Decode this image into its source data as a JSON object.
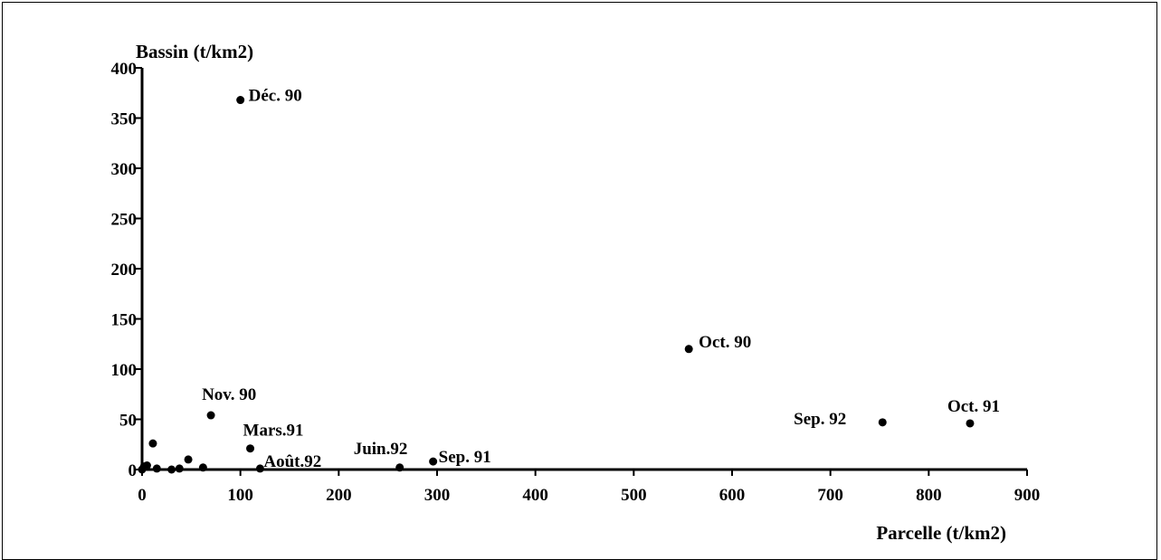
{
  "chart_data": {
    "type": "scatter",
    "ylabel": "Bassin (t/km2)",
    "xlabel": "Parcelle (t/km2)",
    "xlim": [
      0,
      900
    ],
    "ylim": [
      0,
      400
    ],
    "xticks": [
      0,
      100,
      200,
      300,
      400,
      500,
      600,
      700,
      800,
      900
    ],
    "yticks": [
      0,
      50,
      100,
      150,
      200,
      250,
      300,
      350,
      400
    ],
    "grid": false,
    "marker_color": "#000000",
    "points": [
      {
        "x": 100,
        "y": 368,
        "label": "Déc. 90"
      },
      {
        "x": 556,
        "y": 120,
        "label": "Oct. 90"
      },
      {
        "x": 70,
        "y": 54,
        "label": "Nov. 90"
      },
      {
        "x": 110,
        "y": 21,
        "label": "Mars.91"
      },
      {
        "x": 120,
        "y": 1,
        "label": "Août.92"
      },
      {
        "x": 262,
        "y": 2,
        "label": "Juin.92"
      },
      {
        "x": 296,
        "y": 8,
        "label": "Sep. 91"
      },
      {
        "x": 753,
        "y": 47,
        "label": "Sep. 92"
      },
      {
        "x": 842,
        "y": 46,
        "label": "Oct. 91"
      },
      {
        "x": 11,
        "y": 26,
        "label": ""
      },
      {
        "x": 47,
        "y": 10,
        "label": ""
      },
      {
        "x": 2,
        "y": 3,
        "label": ""
      },
      {
        "x": 5,
        "y": 4,
        "label": ""
      },
      {
        "x": 15,
        "y": 1,
        "label": ""
      },
      {
        "x": 30,
        "y": 0,
        "label": ""
      },
      {
        "x": 38,
        "y": 1,
        "label": ""
      },
      {
        "x": 62,
        "y": 2,
        "label": ""
      },
      {
        "x": 0,
        "y": 0,
        "label": ""
      }
    ]
  }
}
